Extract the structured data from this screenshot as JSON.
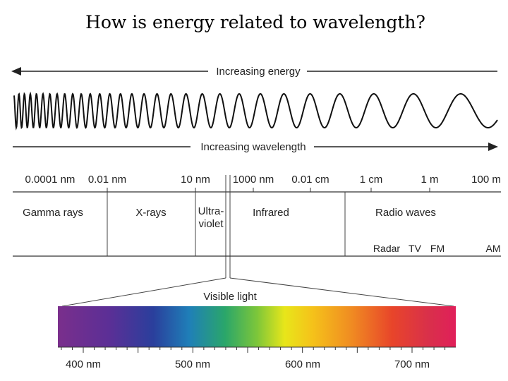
{
  "title": "How is energy related to wavelength?",
  "energy_arrow_label": "Increasing energy",
  "wavelength_arrow_label": "Increasing wavelength",
  "wavelength_scale": [
    "0.0001 nm",
    "0.01 nm",
    "10 nm",
    "1000 nm",
    "0.01 cm",
    "1 cm",
    "1 m",
    "100 m"
  ],
  "regions": {
    "gamma": "Gamma rays",
    "xrays": "X-rays",
    "uv_line1": "Ultra-",
    "uv_line2": "violet",
    "infrared": "Infrared",
    "radio": "Radio waves"
  },
  "radio_bands": [
    "Radar",
    "TV",
    "FM",
    "AM"
  ],
  "visible_label": "Visible light",
  "visible_scale": [
    "400 nm",
    "500 nm",
    "600 nm",
    "700 nm"
  ],
  "colors": {
    "spectrum": [
      "#7a2f8c",
      "#5b2f96",
      "#2a3f9c",
      "#1f7fb8",
      "#2aa66a",
      "#7cc63a",
      "#e8e61a",
      "#f5c21a",
      "#f08a22",
      "#e8452a",
      "#d9304a",
      "#e01f5a"
    ]
  }
}
